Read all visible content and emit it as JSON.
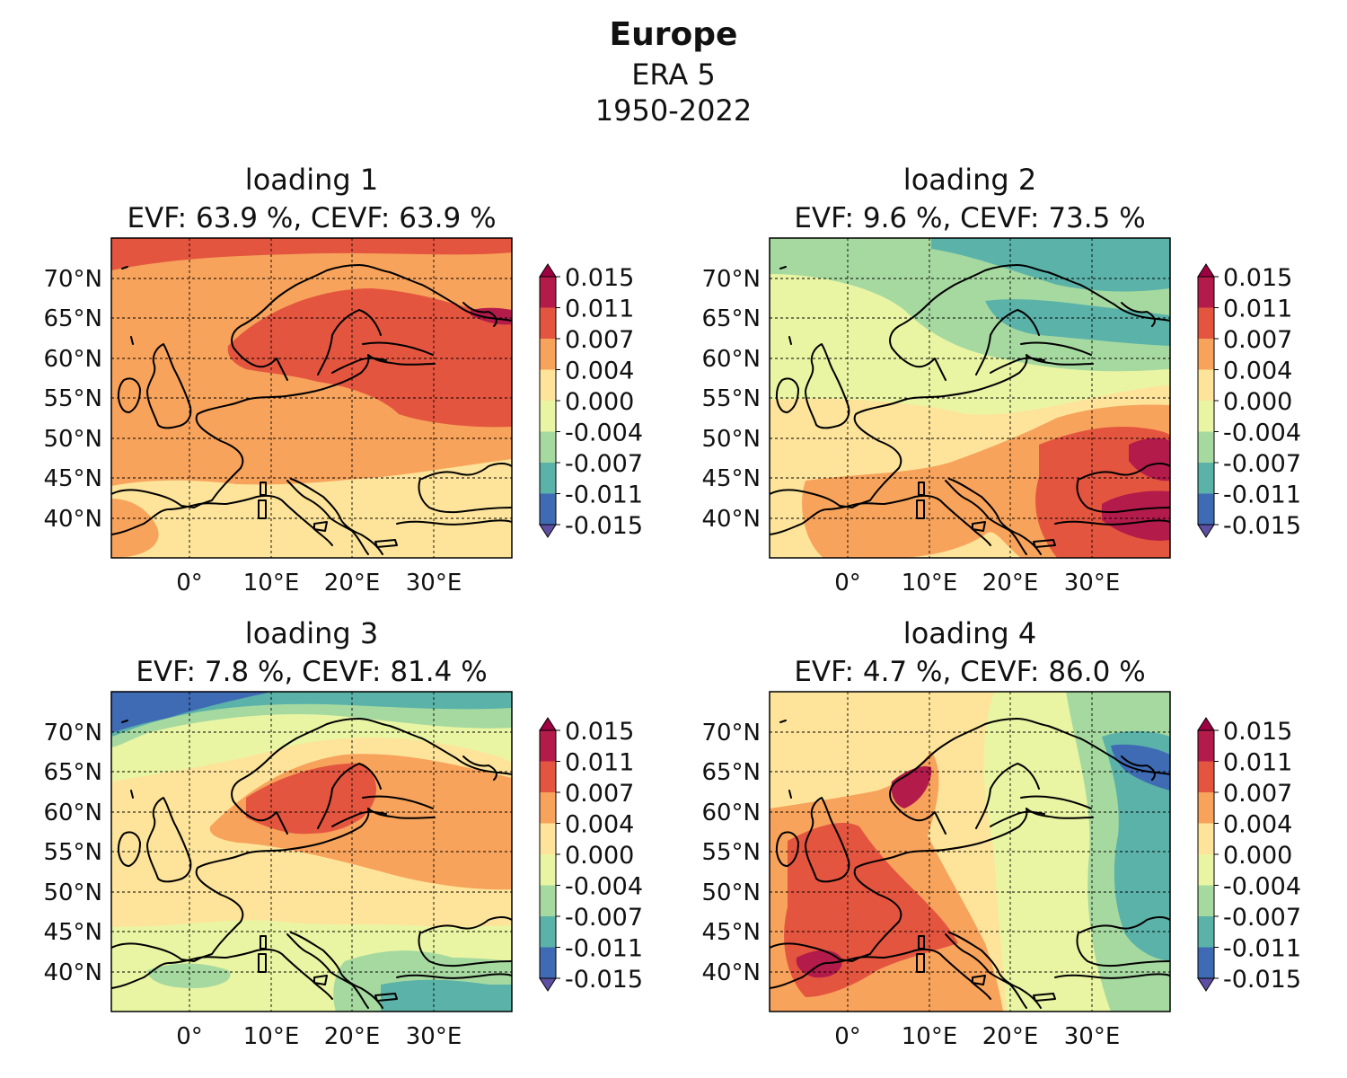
{
  "title": "Europe",
  "subtitle_lines": [
    "ERA 5",
    "1950-2022"
  ],
  "colorbar": {
    "ticks": [
      "0.015",
      "0.011",
      "0.007",
      "0.004",
      "0.000",
      "-0.004",
      "-0.007",
      "-0.011",
      "-0.015"
    ],
    "colors": [
      "#b31b4b",
      "#e4553f",
      "#f7a35c",
      "#fde49a",
      "#e9f5a3",
      "#a6d9a0",
      "#5ab2a8",
      "#3f6bb5"
    ],
    "extend_top_color": "#9e0142",
    "extend_bottom_color": "#5e4fa2"
  },
  "axes": {
    "lat_ticks": [
      "70°N",
      "65°N",
      "60°N",
      "55°N",
      "50°N",
      "45°N",
      "40°N"
    ],
    "lon_ticks": [
      "0°",
      "10°E",
      "20°E",
      "30°E"
    ]
  },
  "panels": [
    {
      "title": "loading 1",
      "stats": "EVF:  63.9 %, CEVF: 63.9 %",
      "pattern": "Uniform positive loading; strongest (0.007–0.011) over Scandinavia, Baltic and western Russia; weakest over the Mediterranean and North Africa."
    },
    {
      "title": "loading 2",
      "stats": "EVF:  9.6 %, CEVF: 73.5 %",
      "pattern": "Dipole: negative over Scandinavia and the northern seas, positive over southeastern Europe and the Black Sea."
    },
    {
      "title": "loading 3",
      "stats": "EVF:  7.8 %, CEVF: 81.4 %",
      "pattern": "Positive over Scandinavia and the North Sea, negative over the Arctic and the eastern Mediterranean."
    },
    {
      "title": "loading 4",
      "stats": "EVF:  4.7 %, CEVF: 86.0 %",
      "pattern": "West–east dipole: positive over Iberia, France, the British Isles and Norway; negative over western Russia and the Kola Peninsula."
    }
  ]
}
